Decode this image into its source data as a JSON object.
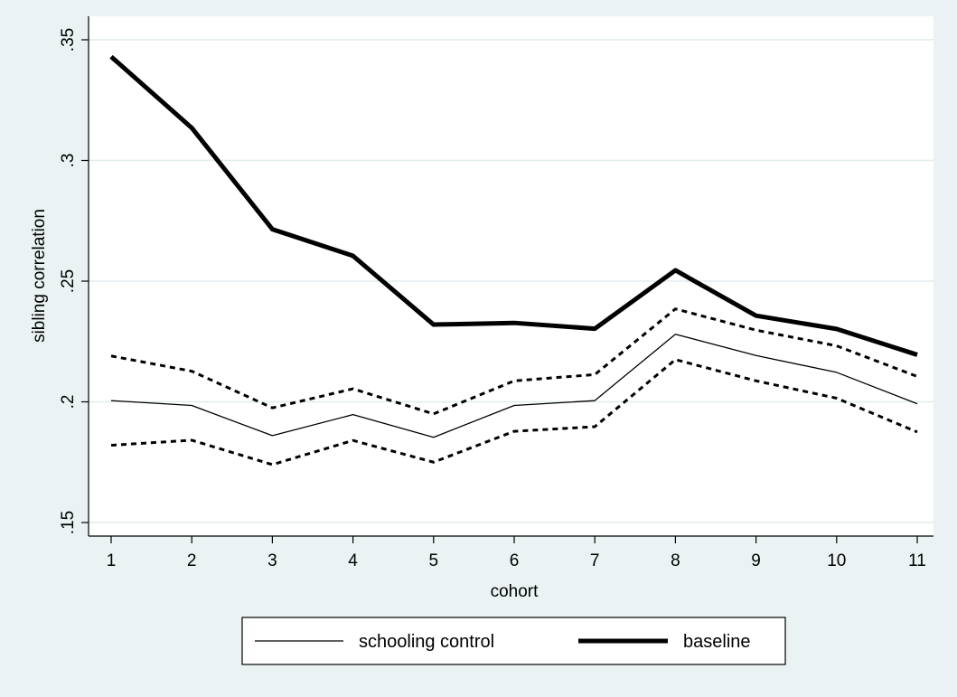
{
  "chart_data": {
    "type": "line",
    "title": "",
    "xlabel": "cohort",
    "ylabel": "sibling correlation",
    "x": [
      1,
      2,
      3,
      4,
      5,
      6,
      7,
      8,
      9,
      10,
      11
    ],
    "xlim": [
      1,
      11
    ],
    "ylim": [
      0.15,
      0.35
    ],
    "yticks": [
      0.15,
      0.2,
      0.25,
      0.3,
      0.35
    ],
    "ytick_labels": [
      ".15",
      ".2",
      ".25",
      ".3",
      ".35"
    ],
    "xtick_labels": [
      "1",
      "2",
      "3",
      "4",
      "5",
      "6",
      "7",
      "8",
      "9",
      "10",
      "11"
    ],
    "grid": true,
    "legend_position": "bottom",
    "series": [
      {
        "name": "baseline",
        "style": "thick-solid",
        "color": "#000000",
        "values": [
          0.343,
          0.3135,
          0.2715,
          0.2605,
          0.232,
          0.2327,
          0.2303,
          0.2545,
          0.2357,
          0.2302,
          0.2195
        ]
      },
      {
        "name": "schooling control",
        "style": "thin-solid",
        "color": "#000000",
        "values": [
          0.2005,
          0.1985,
          0.186,
          0.1947,
          0.1853,
          0.1985,
          0.2005,
          0.228,
          0.2192,
          0.2122,
          0.1992
        ]
      },
      {
        "style": "dashed",
        "color": "#000000",
        "values": [
          0.219,
          0.2127,
          0.1975,
          0.2054,
          0.195,
          0.2087,
          0.2113,
          0.2385,
          0.2297,
          0.2232,
          0.2105
        ]
      },
      {
        "style": "dashed",
        "color": "#000000",
        "values": [
          0.182,
          0.1841,
          0.174,
          0.184,
          0.175,
          0.1878,
          0.1897,
          0.2175,
          0.2087,
          0.2015,
          0.1875
        ]
      }
    ]
  }
}
